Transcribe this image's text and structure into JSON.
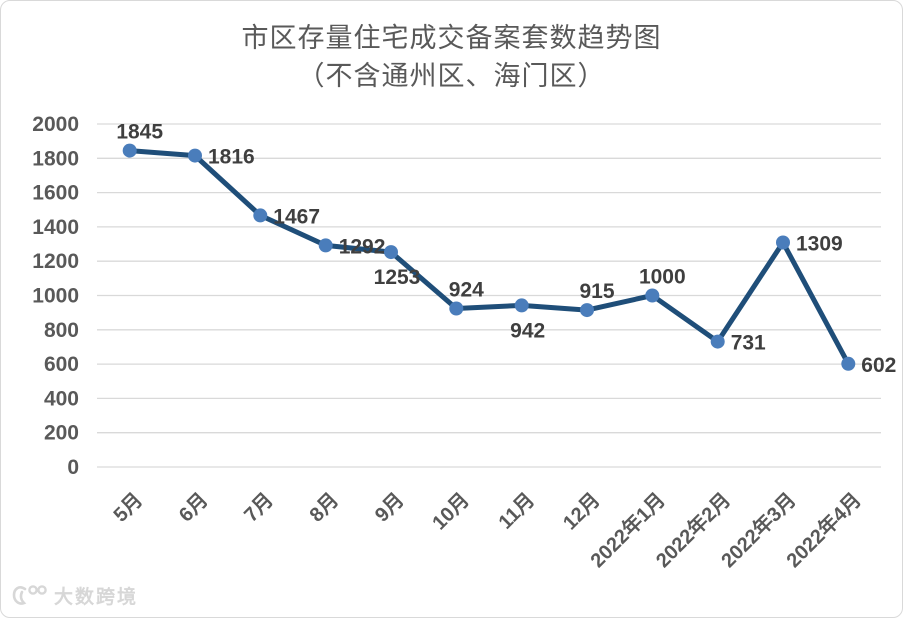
{
  "chart": {
    "title_line1": "市区存量住宅成交备案套数趋势图",
    "title_line2": "（不含通州区、海门区）"
  },
  "watermark": {
    "logo": "dashu-kuajing-logo",
    "text": "大数跨境"
  },
  "chart_data": {
    "type": "line",
    "title": "市区存量住宅成交备案套数趋势图",
    "subtitle": "（不含通州区、海门区）",
    "categories": [
      "5月",
      "6月",
      "7月",
      "8月",
      "9月",
      "10月",
      "11月",
      "12月",
      "2022年1月",
      "2022年2月",
      "2022年3月",
      "2022年4月"
    ],
    "values": [
      1845,
      1816,
      1467,
      1292,
      1253,
      924,
      942,
      915,
      1000,
      731,
      1309,
      602
    ],
    "xlabel": "",
    "ylabel": "",
    "ylim": [
      0,
      2000
    ],
    "ytick_step": 200,
    "grid": true,
    "legend": "none",
    "data_labels": true,
    "label_positions": [
      "above",
      "right",
      "right",
      "right",
      "below",
      "above",
      "below",
      "above",
      "above",
      "right",
      "right",
      "right"
    ],
    "colors": {
      "line": "#1F4E79",
      "marker": "#4A7DBB",
      "gridline": "#D9D9D9",
      "axis_text": "#595959",
      "data_label": "#3F3F3F",
      "title_text": "#595959"
    }
  }
}
